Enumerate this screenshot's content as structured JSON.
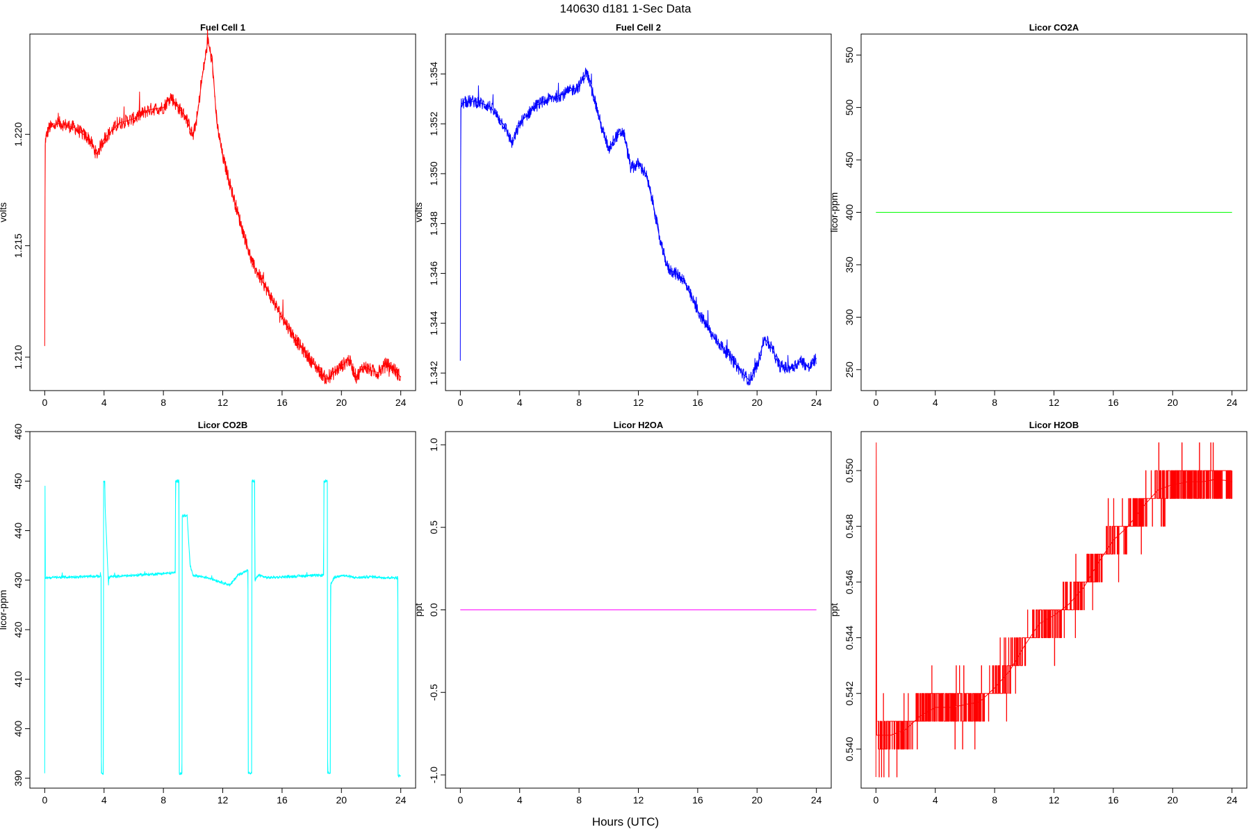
{
  "figure": {
    "suptitle": "140630   d181   1-Sec Data",
    "xlabel": "Hours (UTC)"
  },
  "chart_data": [
    {
      "type": "line",
      "title": "Fuel Cell 1",
      "xlabel": "",
      "ylabel": "volts",
      "color": "#ff0000",
      "xlim": [
        -1,
        25
      ],
      "ylim": [
        1.2085,
        1.2245
      ],
      "xticks": [
        0,
        4,
        8,
        12,
        16,
        20,
        24
      ],
      "yticks": [
        1.21,
        1.215,
        1.22
      ],
      "ytick_labels": [
        "1.210",
        "1.215",
        "1.220"
      ],
      "noise": 0.0003,
      "series": [
        {
          "x": [
            0,
            0.03,
            0.05,
            0.3,
            1,
            2,
            3,
            3.5,
            4,
            5,
            6,
            7,
            8,
            8.5,
            9,
            9.5,
            10,
            10.3,
            10.6,
            11,
            11.3,
            11.6,
            12,
            13,
            14,
            15,
            16,
            17,
            18,
            19,
            19.5,
            20,
            20.5,
            21,
            21.5,
            22,
            22.5,
            23,
            23.5,
            24
          ],
          "y": [
            1.2105,
            1.2195,
            1.2198,
            1.2203,
            1.2205,
            1.2203,
            1.2198,
            1.2191,
            1.2198,
            1.2205,
            1.2207,
            1.2211,
            1.2212,
            1.2217,
            1.2212,
            1.2208,
            1.2199,
            1.2209,
            1.2225,
            1.2242,
            1.2232,
            1.2205,
            1.219,
            1.2165,
            1.2142,
            1.213,
            1.2118,
            1.2107,
            1.2098,
            1.209,
            1.2093,
            1.2096,
            1.2099,
            1.2091,
            1.2096,
            1.2094,
            1.2093,
            1.2097,
            1.2095,
            1.2091
          ]
        }
      ]
    },
    {
      "type": "line",
      "title": "Fuel Cell 2",
      "xlabel": "",
      "ylabel": "volts",
      "color": "#0000ff",
      "xlim": [
        -1,
        25
      ],
      "ylim": [
        1.3413,
        1.3556
      ],
      "xticks": [
        0,
        4,
        8,
        12,
        16,
        20,
        24
      ],
      "yticks": [
        1.342,
        1.344,
        1.346,
        1.348,
        1.35,
        1.352,
        1.354
      ],
      "ytick_labels": [
        "1.342",
        "1.344",
        "1.346",
        "1.348",
        "1.350",
        "1.352",
        "1.354"
      ],
      "noise": 0.00025,
      "series": [
        {
          "x": [
            0,
            0.03,
            0.06,
            0.5,
            1,
            2,
            3,
            3.5,
            4,
            5,
            6,
            7,
            8,
            8.5,
            9,
            9.5,
            10,
            10.5,
            11,
            11.5,
            12,
            12.5,
            13,
            13.5,
            14,
            15,
            16,
            17,
            18,
            19,
            19.5,
            20,
            20.5,
            21,
            21.5,
            22,
            22.5,
            23,
            23.5,
            24
          ],
          "y": [
            1.3425,
            1.3526,
            1.3528,
            1.3529,
            1.3529,
            1.3527,
            1.3519,
            1.3512,
            1.352,
            1.3527,
            1.353,
            1.3532,
            1.3535,
            1.3541,
            1.3531,
            1.3519,
            1.351,
            1.3515,
            1.3517,
            1.3502,
            1.3504,
            1.35,
            1.3488,
            1.3472,
            1.3462,
            1.3458,
            1.3445,
            1.3435,
            1.3428,
            1.342,
            1.3417,
            1.3423,
            1.3434,
            1.343,
            1.3423,
            1.3422,
            1.3423,
            1.3425,
            1.3422,
            1.3426
          ]
        }
      ]
    },
    {
      "type": "line",
      "title": "Licor CO2A",
      "xlabel": "",
      "ylabel": "licor-ppm",
      "color": "#00ff00",
      "xlim": [
        -1,
        25
      ],
      "ylim": [
        230,
        570
      ],
      "xticks": [
        0,
        4,
        8,
        12,
        16,
        20,
        24
      ],
      "yticks": [
        250,
        300,
        350,
        400,
        450,
        500,
        550
      ],
      "ytick_labels": [
        "250",
        "300",
        "350",
        "400",
        "450",
        "500",
        "550"
      ],
      "noise": 0,
      "series": [
        {
          "x": [
            0,
            24
          ],
          "y": [
            400,
            400
          ]
        }
      ]
    },
    {
      "type": "line",
      "title": "Licor CO2B",
      "xlabel": "",
      "ylabel": "licor-ppm",
      "color": "#00ffff",
      "xlim": [
        -1,
        25
      ],
      "ylim": [
        388,
        460
      ],
      "xticks": [
        0,
        4,
        8,
        12,
        16,
        20,
        24
      ],
      "yticks": [
        390,
        400,
        410,
        420,
        430,
        440,
        450,
        460
      ],
      "ytick_labels": [
        "390",
        "400",
        "410",
        "420",
        "430",
        "440",
        "450",
        "460"
      ],
      "noise": 0.3,
      "series": [
        {
          "x": [
            0,
            0.02,
            0.04,
            0.06,
            3.8,
            3.82,
            3.95,
            3.97,
            4.05,
            4.07,
            4.3,
            4.32,
            4.5,
            8.8,
            8.82,
            9.05,
            9.07,
            9.25,
            9.27,
            9.6,
            9.8,
            10,
            11,
            12,
            12.5,
            13,
            13.7,
            13.72,
            13.95,
            13.97,
            14.15,
            14.17,
            14.4,
            15,
            17,
            18.8,
            18.82,
            19.05,
            19.07,
            19.25,
            19.27,
            19.5,
            20,
            21,
            22,
            23,
            23.8,
            23.82,
            24
          ],
          "y": [
            391,
            449,
            430.5,
            430.5,
            430.8,
            391,
            391,
            450,
            450,
            445,
            429,
            430.5,
            430.7,
            431.5,
            450,
            450,
            391,
            391,
            443,
            443,
            433,
            431,
            430.5,
            429.5,
            429,
            431,
            432,
            391,
            391,
            450,
            450,
            430,
            431,
            430.5,
            430.8,
            431,
            450,
            450,
            391,
            391,
            429,
            430.5,
            431,
            430.5,
            430.7,
            430.5,
            430.5,
            390.5,
            390.5
          ]
        }
      ]
    },
    {
      "type": "line",
      "title": "Licor H2OA",
      "xlabel": "",
      "ylabel": "ppt",
      "color": "#ff00ff",
      "xlim": [
        -1,
        25
      ],
      "ylim": [
        -1.08,
        1.08
      ],
      "xticks": [
        0,
        4,
        8,
        12,
        16,
        20,
        24
      ],
      "yticks": [
        -1.0,
        -0.5,
        0.0,
        0.5,
        1.0
      ],
      "ytick_labels": [
        "-1.0",
        "-0.5",
        "0.0",
        "0.5",
        "1.0"
      ],
      "noise": 0,
      "series": [
        {
          "x": [
            0,
            24
          ],
          "y": [
            0,
            0
          ]
        }
      ]
    },
    {
      "type": "line",
      "title": "Licor H2OB",
      "xlabel": "",
      "ylabel": "ppt",
      "color": "#ff0000",
      "xlim": [
        -1,
        25
      ],
      "ylim": [
        0.5386,
        0.5514
      ],
      "xticks": [
        0,
        4,
        8,
        12,
        16,
        20,
        24
      ],
      "yticks": [
        0.54,
        0.542,
        0.544,
        0.546,
        0.548,
        0.55
      ],
      "ytick_labels": [
        "0.540",
        "0.542",
        "0.544",
        "0.546",
        "0.548",
        "0.550"
      ],
      "quantized": 0.001,
      "series": [
        {
          "x": [
            0,
            0.02,
            0.05,
            1,
            2,
            3,
            4,
            5,
            6,
            7,
            8,
            9,
            10,
            11,
            12,
            13,
            14,
            15,
            16,
            17,
            18,
            19,
            20,
            21,
            22,
            23,
            24
          ],
          "y": [
            0.539,
            0.551,
            0.5405,
            0.5405,
            0.5407,
            0.5412,
            0.5415,
            0.5415,
            0.5416,
            0.5417,
            0.5422,
            0.5428,
            0.5437,
            0.5445,
            0.5448,
            0.5452,
            0.5458,
            0.5467,
            0.5475,
            0.548,
            0.5487,
            0.5493,
            0.5495,
            0.5496,
            0.5496,
            0.5497,
            0.5496
          ]
        }
      ]
    }
  ]
}
